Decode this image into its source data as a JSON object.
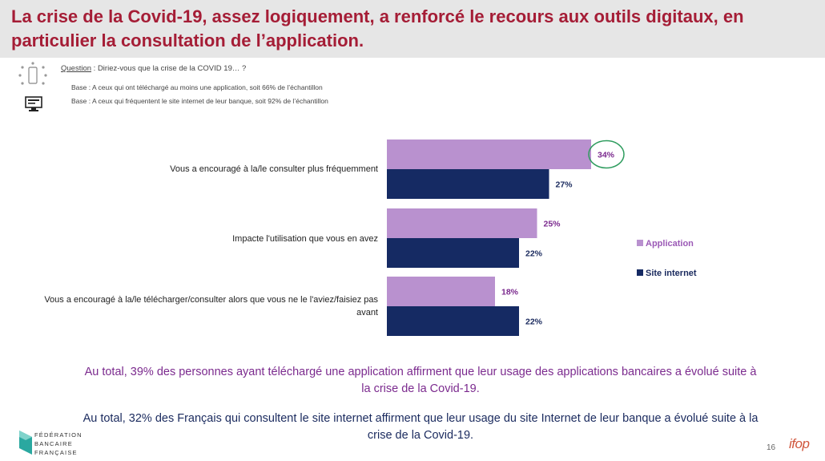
{
  "title": "La crise de la Covid-19, assez logiquement, a renforcé le recours aux outils digitaux, en particulier la consultation de l’application.",
  "question": {
    "label": "Question",
    "text": " :  Diriez-vous que la crise de la COVID 19… ?"
  },
  "bases": [
    "Base : A ceux qui ont téléchargé au moins une application, soit 66% de l’échantillon",
    "Base : A ceux qui fréquentent le site internet de leur banque, soit 92% de l’échantillon"
  ],
  "chart_data": {
    "type": "bar",
    "orientation": "horizontal",
    "categories": [
      "Vous a encouragé à la/le consulter plus fréquemment",
      "Impacte l'utilisation que vous en avez",
      "Vous a encouragé à la/le télécharger/consulter alors que vous ne le l'aviez/faisiez pas avant"
    ],
    "series": [
      {
        "name": "Application",
        "values": [
          34,
          25,
          18
        ],
        "labels": [
          "34%",
          "25%",
          "18%"
        ],
        "color": "#b991cf"
      },
      {
        "name": "Site internet",
        "values": [
          27,
          22,
          22
        ],
        "labels": [
          "27%",
          "22%",
          "22%"
        ],
        "color": "#152a63"
      }
    ],
    "highlight": {
      "series": 0,
      "category": 0,
      "color": "#2e9c5e"
    },
    "legend": "right"
  },
  "summary": [
    "Au total, 39% des personnes ayant téléchargé une application affirment que leur usage des applications bancaires a évolué suite à la crise de la Covid-19.",
    "Au total, 32% des Français qui consultent le site internet affirment que leur usage du site Internet de leur banque a évolué suite à la crise de la Covid-19."
  ],
  "footer": {
    "logo_lines": [
      "FÉDÉRATION",
      "BANCAIRE",
      "FRANÇAISE"
    ],
    "page_number": "16",
    "brand": "ifop",
    "colors": {
      "fbf": "#2aa8a0",
      "ifop": "#d0563c"
    }
  }
}
